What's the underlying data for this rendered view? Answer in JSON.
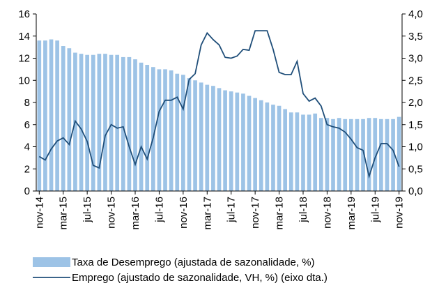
{
  "chart_data": {
    "type": "bar_line",
    "categories": [
      "nov-14",
      null,
      null,
      null,
      "mar-15",
      null,
      null,
      null,
      "jul-15",
      null,
      null,
      null,
      "nov-15",
      null,
      null,
      null,
      "mar-16",
      null,
      null,
      null,
      "jul-16",
      null,
      null,
      null,
      "nov-16",
      null,
      null,
      null,
      "mar-17",
      null,
      null,
      null,
      "jul-17",
      null,
      null,
      null,
      "nov-17",
      null,
      null,
      null,
      "mar-18",
      null,
      null,
      null,
      "jul-18",
      null,
      null,
      null,
      "nov-18",
      null,
      null,
      null,
      "mar-19",
      null,
      null,
      null,
      "jul-19",
      null,
      null,
      null,
      "nov-19"
    ],
    "series": [
      {
        "name": "Taxa de Desemprego (ajustada de sazonalidade, %)",
        "type": "bar",
        "color": "#9dc3e6",
        "values": [
          13.6,
          13.6,
          13.7,
          13.6,
          13.1,
          12.9,
          12.5,
          12.4,
          12.3,
          12.3,
          12.4,
          12.4,
          12.3,
          12.3,
          12.1,
          12.1,
          11.9,
          11.6,
          11.4,
          11.2,
          11.0,
          11.0,
          10.9,
          10.6,
          10.5,
          10.2,
          10.0,
          9.8,
          9.6,
          9.5,
          9.3,
          9.1,
          9.0,
          8.9,
          8.8,
          8.6,
          8.4,
          8.2,
          8.0,
          7.8,
          7.7,
          7.4,
          7.1,
          7.1,
          6.9,
          6.9,
          7.0,
          6.6,
          6.6,
          6.5,
          6.6,
          6.5,
          6.5,
          6.5,
          6.5,
          6.6,
          6.6,
          6.5,
          6.5,
          6.5,
          6.7
        ]
      },
      {
        "name": "Emprego (ajustado de sazonalidade, VH, %) (eixo dta.)",
        "type": "line",
        "axis": "y2",
        "color": "#1f4e79",
        "values": [
          0.78,
          0.7,
          0.95,
          1.13,
          1.2,
          1.05,
          1.58,
          1.4,
          1.12,
          0.58,
          0.52,
          1.25,
          1.5,
          1.42,
          1.45,
          1.0,
          0.6,
          1.0,
          0.72,
          1.2,
          1.8,
          2.05,
          2.05,
          2.12,
          1.85,
          2.52,
          2.65,
          3.3,
          3.57,
          3.42,
          3.3,
          3.02,
          3.0,
          3.05,
          3.2,
          3.18,
          3.62,
          3.62,
          3.62,
          3.2,
          2.68,
          2.63,
          2.63,
          2.93,
          2.2,
          2.03,
          2.1,
          1.92,
          1.5,
          1.45,
          1.42,
          1.33,
          1.17,
          0.98,
          0.92,
          0.33,
          0.75,
          1.07,
          1.07,
          0.92,
          0.55
        ]
      }
    ],
    "ylim": [
      0,
      16
    ],
    "yticks": [
      0,
      2,
      4,
      6,
      8,
      10,
      12,
      14,
      16
    ],
    "y2lim": [
      0,
      4
    ],
    "y2ticks": [
      {
        "value": 0,
        "label": "0,0"
      },
      {
        "value": 0.5,
        "label": "0,5"
      },
      {
        "value": 1,
        "label": "1,0"
      },
      {
        "value": 1.5,
        "label": "1,5"
      },
      {
        "value": 2,
        "label": "2,0"
      },
      {
        "value": 2.5,
        "label": "2,5"
      },
      {
        "value": 3,
        "label": "3,0"
      },
      {
        "value": 3.5,
        "label": "3,5"
      },
      {
        "value": 4,
        "label": "4,0"
      }
    ],
    "legend": "bottom"
  }
}
